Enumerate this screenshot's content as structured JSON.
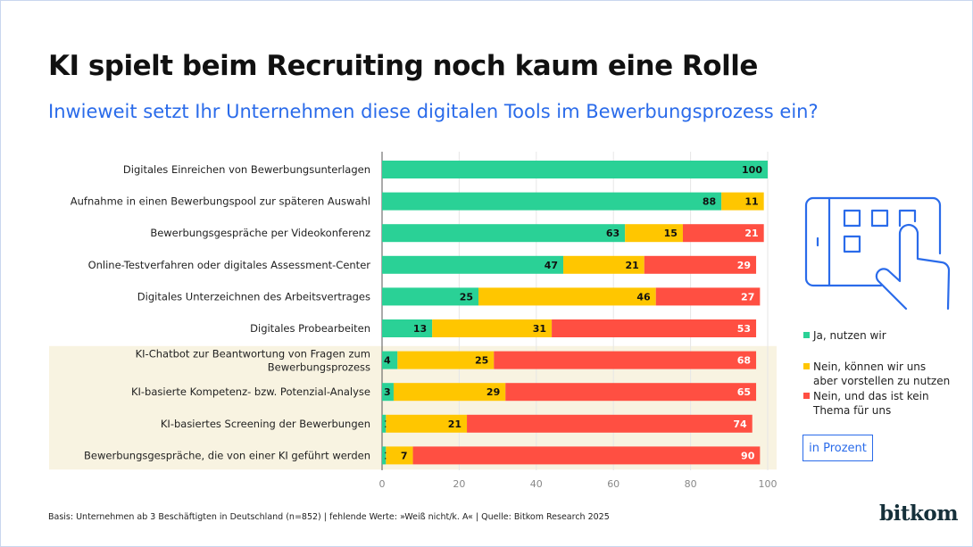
{
  "title": "KI spielt beim Recruiting noch kaum eine Rolle",
  "subtitle": "Inwieweit setzt Ihr Unternehmen diese digitalen Tools im Bewerbungsprozess ein?",
  "unit_label": "in Prozent",
  "footnote": "Basis: Unternehmen ab 3 Beschäftigten in Deutschland (n=852) | fehlende Werte: »Weiß nicht/k. A« | Quelle: Bitkom Research 2025",
  "logo": "bitkom",
  "icon": "touch-tablet-icon",
  "colors": {
    "ja": "#2ad196",
    "vorstellbar": "#ffc600",
    "nein": "#ff4f42",
    "highlight_bg": "#f8f3e1",
    "accent": "#2a6bea"
  },
  "chart_data": {
    "type": "bar",
    "orientation": "horizontal",
    "stacked": true,
    "xlim": [
      0,
      100
    ],
    "xticks": [
      "0",
      "20",
      "40",
      "60",
      "80",
      "100"
    ],
    "grid": true,
    "legend_position": "right",
    "categories": [
      "Digitales Einreichen von Bewerbungsunterlagen",
      "Aufnahme in einen Bewerbungspool zur späteren Auswahl",
      "Bewerbungsgespräche per Videokonferenz",
      "Online-Testverfahren oder digitales Assessment-Center",
      "Digitales Unterzeichnen des Arbeitsvertrages",
      "Digitales Probearbeiten",
      "KI-Chatbot zur Beantwortung von Fragen zum Bewerbungsprozess",
      "KI-basierte Kompetenz- bzw. Potenzial-Analyse",
      "KI-basiertes Screening der Bewerbungen",
      "Bewerbungsgespräche, die von einer KI geführt werden"
    ],
    "highlighted_categories": [
      6,
      7,
      8,
      9
    ],
    "series": [
      {
        "name": "Ja, nutzen wir",
        "color": "#2ad196",
        "values": [
          100,
          88,
          63,
          47,
          25,
          13,
          4,
          3,
          1,
          1
        ]
      },
      {
        "name": "Nein, können wir uns aber vorstellen zu nutzen",
        "color": "#ffc600",
        "values": [
          0,
          11,
          15,
          21,
          46,
          31,
          25,
          29,
          21,
          7
        ]
      },
      {
        "name": "Nein, und das ist kein Thema für uns",
        "color": "#ff4f42",
        "values": [
          0,
          0,
          21,
          29,
          27,
          53,
          68,
          65,
          74,
          90
        ]
      }
    ]
  }
}
